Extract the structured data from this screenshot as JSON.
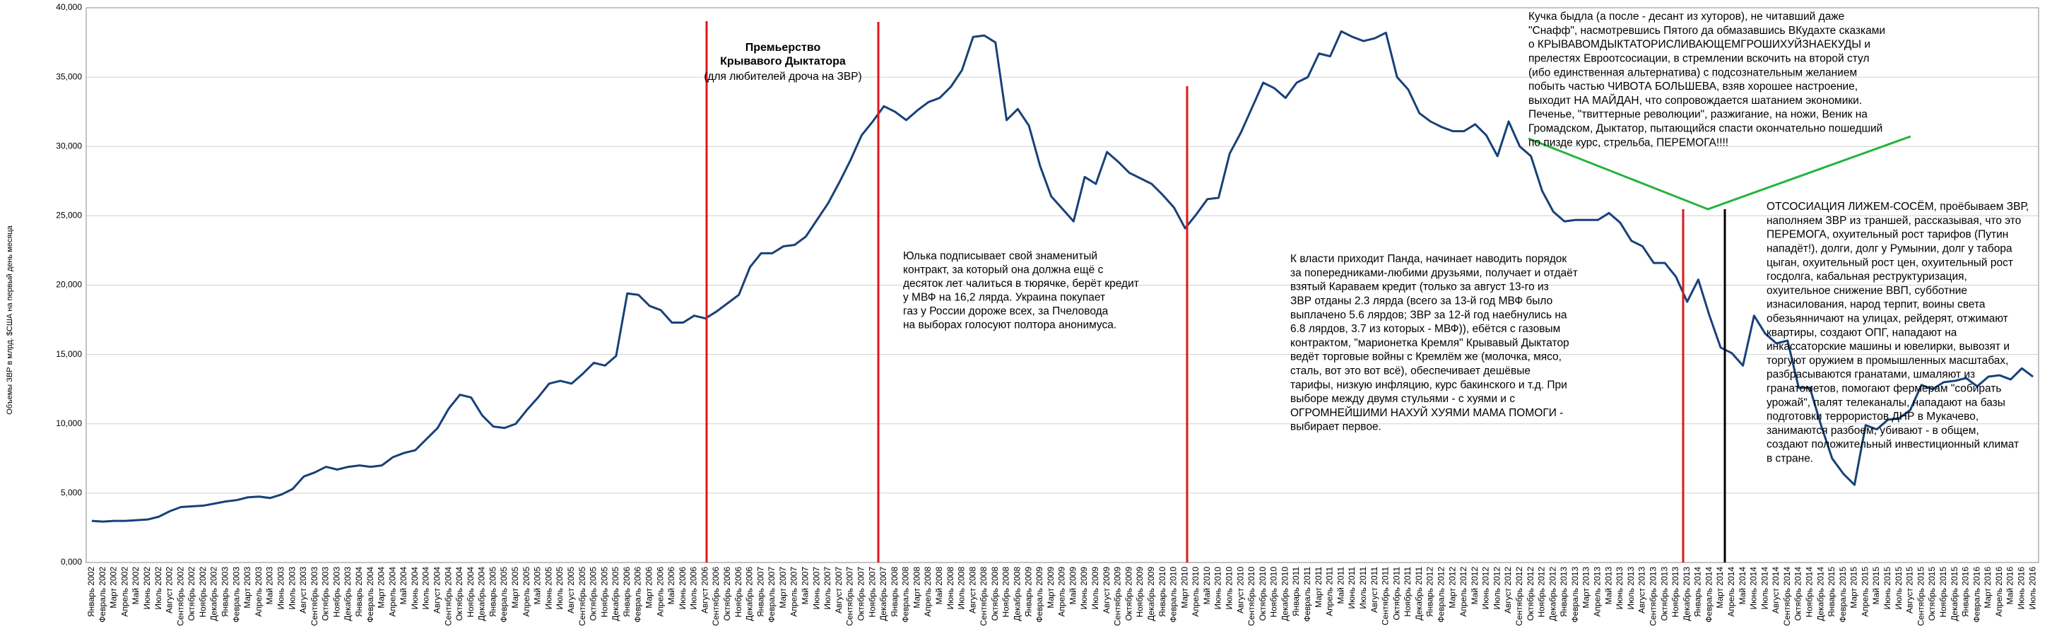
{
  "chart_data": {
    "type": "line",
    "y_label": "Объемы ЗВР в млрд. $США на первый день месяца",
    "color": "#17417a",
    "grid": true,
    "ylim": [
      0,
      40000
    ],
    "yticks": [
      {
        "value": 0,
        "label": "0,000"
      },
      {
        "value": 5000,
        "label": "5,000"
      },
      {
        "value": 10000,
        "label": "10,000"
      },
      {
        "value": 15000,
        "label": "15,000"
      },
      {
        "value": 20000,
        "label": "20,000"
      },
      {
        "value": 25000,
        "label": "25,000"
      },
      {
        "value": 30000,
        "label": "30,000"
      },
      {
        "value": 35000,
        "label": "35,000"
      },
      {
        "value": 40000,
        "label": "40,000"
      }
    ],
    "categories": [
      "Январь 2002",
      "Февраль 2002",
      "Март 2002",
      "Апрель 2002",
      "Май 2002",
      "Июнь 2002",
      "Июль 2002",
      "Август 2002",
      "Сентябрь 2002",
      "Октябрь 2002",
      "Ноябрь 2002",
      "Декабрь 2002",
      "Январь 2003",
      "Февраль 2003",
      "Март 2003",
      "Апрель 2003",
      "Май 2003",
      "Июнь 2003",
      "Июль 2003",
      "Август 2003",
      "Сентябрь 2003",
      "Октябрь 2003",
      "Ноябрь 2003",
      "Декабрь 2003",
      "Январь 2004",
      "Февраль 2004",
      "Март 2004",
      "Апрель 2004",
      "Май 2004",
      "Июнь 2004",
      "Июль 2004",
      "Август 2004",
      "Сентябрь 2004",
      "Октябрь 2004",
      "Ноябрь 2004",
      "Декабрь 2004",
      "Январь 2005",
      "Февраль 2005",
      "Март 2005",
      "Апрель 2005",
      "Май 2005",
      "Июнь 2005",
      "Июль 2005",
      "Август 2005",
      "Сентябрь 2005",
      "Октябрь 2005",
      "Ноябрь 2005",
      "Декабрь 2005",
      "Январь 2006",
      "Февраль 2006",
      "Март 2006",
      "Апрель 2006",
      "Май 2006",
      "Июнь 2006",
      "Июль 2006",
      "Август 2006",
      "Сентябрь 2006",
      "Октябрь 2006",
      "Ноябрь 2006",
      "Декабрь 2006",
      "Январь 2007",
      "Февраль 2007",
      "Март 2007",
      "Апрель 2007",
      "Май 2007",
      "Июнь 2007",
      "Июль 2007",
      "Август 2007",
      "Сентябрь 2007",
      "Октябрь 2007",
      "Ноябрь 2007",
      "Декабрь 2007",
      "Январь 2008",
      "Февраль 2008",
      "Март 2008",
      "Апрель 2008",
      "Май 2008",
      "Июнь 2008",
      "Июль 2008",
      "Август 2008",
      "Сентябрь 2008",
      "Октябрь 2008",
      "Ноябрь 2008",
      "Декабрь 2008",
      "Январь 2009",
      "Февраль 2009",
      "Март 2009",
      "Апрель 2009",
      "Май 2009",
      "Июнь 2009",
      "Июль 2009",
      "Август 2009",
      "Сентябрь 2009",
      "Октябрь 2009",
      "Ноябрь 2009",
      "Декабрь 2009",
      "Январь 2010",
      "Февраль 2010",
      "Март 2010",
      "Апрель 2010",
      "Май 2010",
      "Июнь 2010",
      "Июль 2010",
      "Август 2010",
      "Сентябрь 2010",
      "Октябрь 2010",
      "Ноябрь 2010",
      "Декабрь 2010",
      "Январь 2011",
      "Февраль 2011",
      "Март 2011",
      "Апрель 2011",
      "Май 2011",
      "Июнь 2011",
      "Июль 2011",
      "Август 2011",
      "Сентябрь 2011",
      "Октябрь 2011",
      "Ноябрь 2011",
      "Декабрь 2011",
      "Январь 2012",
      "Февраль 2012",
      "Март 2012",
      "Апрель 2012",
      "Май 2012",
      "Июнь 2012",
      "Июль 2012",
      "Август 2012",
      "Сентябрь 2012",
      "Октябрь 2012",
      "Ноябрь 2012",
      "Декабрь 2012",
      "Январь 2013",
      "Февраль 2013",
      "Март 2013",
      "Апрель 2013",
      "Май 2013",
      "Июнь 2013",
      "Июль 2013",
      "Август 2013",
      "Сентябрь 2013",
      "Октябрь 2013",
      "Ноябрь 2013",
      "Декабрь 2013",
      "Январь 2014",
      "Февраль 2014",
      "Март 2014",
      "Апрель 2014",
      "Май 2014",
      "Июнь 2014",
      "Июль 2014",
      "Август 2014",
      "Сентябрь 2014",
      "Октябрь 2014",
      "Ноябрь 2014",
      "Декабрь 2014",
      "Январь 2015",
      "Февраль 2015",
      "Март 2015",
      "Апрель 2015",
      "Май 2015",
      "Июнь 2015",
      "Июль 2015",
      "Август 2015",
      "Сентябрь 2015",
      "Октябрь 2015",
      "Ноябрь 2015",
      "Декабрь 2015",
      "Январь 2016",
      "Февраль 2016",
      "Март 2016",
      "Апрель 2016",
      "Май 2016",
      "Июнь 2016",
      "Июль 2016"
    ],
    "values": [
      3000,
      2950,
      3000,
      3000,
      3050,
      3100,
      3300,
      3700,
      4000,
      4050,
      4100,
      4250,
      4400,
      4500,
      4700,
      4750,
      4650,
      4900,
      5300,
      6200,
      6500,
      6900,
      6700,
      6900,
      7000,
      6900,
      7000,
      7600,
      7900,
      8100,
      8900,
      9700,
      11100,
      12100,
      11900,
      10600,
      9800,
      9700,
      10000,
      11000,
      11900,
      12900,
      13100,
      12900,
      13600,
      14400,
      14200,
      14900,
      19400,
      19300,
      18500,
      18200,
      17300,
      17300,
      17800,
      17600,
      18100,
      18700,
      19300,
      21300,
      22300,
      22300,
      22800,
      22900,
      23500,
      24700,
      25900,
      27400,
      29000,
      30800,
      31800,
      32900,
      32500,
      31900,
      32600,
      33200,
      33500,
      34300,
      35500,
      37900,
      38000,
      37500,
      31900,
      32700,
      31500,
      28600,
      26400,
      25500,
      24600,
      27800,
      27300,
      29600,
      28900,
      28100,
      27700,
      27300,
      26500,
      25600,
      24100,
      25100,
      26200,
      26300,
      29500,
      31000,
      32800,
      34600,
      34200,
      33500,
      34600,
      35000,
      36700,
      36500,
      38300,
      37900,
      37600,
      37800,
      38200,
      35000,
      34100,
      32400,
      31800,
      31400,
      31100,
      31100,
      31600,
      30800,
      29300,
      31800,
      30000,
      29300,
      26800,
      25300,
      24600,
      24700,
      24700,
      24700,
      25200,
      24500,
      23200,
      22800,
      21600,
      21600,
      20600,
      18800,
      20400,
      17800,
      15500,
      15100,
      14200,
      17800,
      16500,
      15800,
      16000,
      12600,
      12600,
      9900,
      7500,
      6400,
      5600,
      9900,
      9600,
      10300,
      10400,
      11000,
      12800,
      12500,
      13000,
      13100,
      13300,
      12700,
      13400,
      13500,
      13200,
      14000,
      13400
    ],
    "annotations": [
      {
        "lines": [
          "Премьерство",
          "Крывавого Дыктатора",
          "(для любителей дроча на ЗВР)"
        ]
      },
      {
        "lines": [
          "Юлька подписывает свой знаменитый",
          "контракт, за который она должна ещё с",
          "десяток лет чалиться в тюрячке, берёт кредит",
          "у МВФ на 16,2 лярда. Украина покупает",
          "газ у России дороже всех, за Пчеловода",
          "на выборах голосуют полтора анонимуса."
        ]
      },
      {
        "lines": [
          "К власти приходит Панда, начинает наводить порядок",
          "за попередниками-любими друзьями, получает и отдаёт",
          "взятый Караваем кредит (только за август 13-го из",
          "ЗВР отданы 2.3 лярда (всего за 13-й год МВФ было",
          "выплачено 5.6 лярдов; ЗВР за 12-й год наебнулись на",
          "6.8 лярдов, 3.7 из которых - МВФ)), ебётся с газовым",
          "контрактом, \"марионетка Кремля\" Крывавый Дыктатор",
          "ведёт торговые войны с Кремлём же (молочка, мясо,",
          "сталь, вот это вот всё), обеспечивает дешёвые",
          "тарифы, низкую инфляцию, курс бакинского и т.д. При",
          "выборе между двумя стульями - с хуями и с",
          "ОГРОМНЕЙШИМИ НАХУЙ ХУЯМИ МАМА ПОМОГИ -",
          "выбирает первое."
        ]
      },
      {
        "lines": [
          "Кучка быдла (а после - десант из хуторов), не читавший даже",
          "\"Снафф\", насмотревшись Пятого да обмазавшись ВКудахте сказками",
          "о КРЫВАВОМДЫКТАТОРИСЛИВАЮЩЕМГРОШИХУЙЗНАЕКУДЫ и",
          "прелестях Евроотсосиации, в стремлении вскочить на второй стул",
          "(ибо единственная альтернатива) с подсознательным желанием",
          "побыть частью ЧИВОТА БОЛЬШЕВА, взяв хорошее настроение,",
          "выходит НА МАЙДАН, что сопровождается шатанием экономики.",
          "Печенье, \"твиттерные революции\", разжигание, на ножи, Веник на",
          "Громадском, Дыктатор, пытающийся спасти окончательно пошедший",
          "по пизде курс, стрельба, ПЕРЕМОГА!!!!"
        ]
      },
      {
        "lines": [
          "ОТСОСИАЦИЯ ЛИЖЕМ-СОСЁМ, проёбываем ЗВР,",
          "наполняем ЗВР из траншей, рассказывая, что это",
          "ПЕРЕМОГА, охуительный рост тарифов (Путин",
          "нападёт!), долги, долг у Румынии, долг у табора",
          "цыган, охуительный рост цен, охуительный рост",
          "госдолга, кабальная реструктуризация,",
          "охуительное снижение ВВП, субботние",
          "изнасилования, народ терпит, воины света",
          "обезьянничают на улицах, рейдерят, отжимают",
          "квартиры, создают ОПГ, нападают на",
          "инкассаторские машины и ювелирки, вывозят и",
          "торгуют оружием в промышленных масштабах,",
          "разбрасываются гранатами, шмаляют из",
          "гранатометов, помогают фермерам \"собирать",
          "урожай\", палят телеканалы, нападают на базы",
          "подготовки террористов ДНР в Мукачево,",
          "занимаются разбоем, убивают - в общем,",
          "создают положительный инвестиционный климат",
          "в стране."
        ]
      }
    ]
  }
}
